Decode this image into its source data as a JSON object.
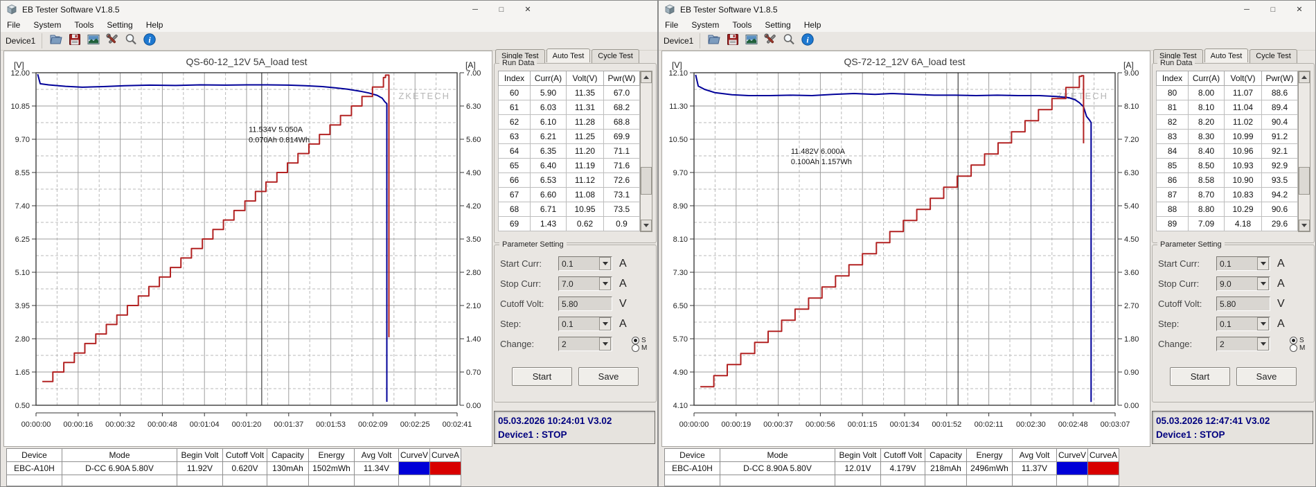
{
  "app": {
    "title": "EB Tester Software V1.8.5",
    "menu_items": [
      "File",
      "System",
      "Tools",
      "Setting",
      "Help"
    ],
    "device_tab": "Device1",
    "window_controls": {
      "minimize": "─",
      "maximize": "□",
      "close": "✕"
    },
    "toolbar_icons": [
      "open-file",
      "save",
      "waveform-image",
      "tools",
      "zoom",
      "info"
    ]
  },
  "windows": [
    {
      "tabs": [
        "Single Test",
        "Auto Test",
        "Cycle Test"
      ],
      "active_tab_index": 1,
      "run_data_title": "Run Data",
      "run_columns": [
        "Index",
        "Curr(A)",
        "Volt(V)",
        "Pwr(W)"
      ],
      "run_rows": [
        [
          "60",
          "5.90",
          "11.35",
          "67.0"
        ],
        [
          "61",
          "6.03",
          "11.31",
          "68.2"
        ],
        [
          "62",
          "6.10",
          "11.28",
          "68.8"
        ],
        [
          "63",
          "6.21",
          "11.25",
          "69.9"
        ],
        [
          "64",
          "6.35",
          "11.20",
          "71.1"
        ],
        [
          "65",
          "6.40",
          "11.19",
          "71.6"
        ],
        [
          "66",
          "6.53",
          "11.12",
          "72.6"
        ],
        [
          "67",
          "6.60",
          "11.08",
          "73.1"
        ],
        [
          "68",
          "6.71",
          "10.95",
          "73.5"
        ],
        [
          "69",
          "1.43",
          "0.62",
          "0.9"
        ]
      ],
      "param_title": "Parameter Setting",
      "params": [
        {
          "label": "Start Curr:",
          "value": "0.1",
          "unit": "A",
          "combo": true
        },
        {
          "label": "Stop Curr:",
          "value": "7.0",
          "unit": "A",
          "combo": true
        },
        {
          "label": "Cutoff Volt:",
          "value": "5.80",
          "unit": "V",
          "combo": false
        },
        {
          "label": "Step:",
          "value": "0.1",
          "unit": "A",
          "combo": true
        },
        {
          "label": "Change:",
          "value": "2",
          "unit": "",
          "combo": true,
          "radios": [
            {
              "label": "S",
              "selected": true
            },
            {
              "label": "M",
              "selected": false
            }
          ]
        }
      ],
      "start_button": "Start",
      "save_button": "Save",
      "status_line1": "05.03.2026 10:24:01  V3.02",
      "status_line2": "Device1 : STOP",
      "summary_columns": [
        "Device",
        "Mode",
        "Begin Volt",
        "Cutoff Volt",
        "Capacity",
        "Energy",
        "Avg Volt",
        "CurveV",
        "CurveA"
      ],
      "summary_row": [
        "EBC-A10H",
        "D-CC 6.90A 5.80V",
        "11.92V",
        "0.620V",
        "130mAh",
        "1502mWh",
        "11.34V"
      ],
      "curve_v_color": "#0000d8",
      "curve_a_color": "#d80000"
    },
    {
      "tabs": [
        "Single Test",
        "Auto Test",
        "Cycle Test"
      ],
      "active_tab_index": 1,
      "run_data_title": "Run Data",
      "run_columns": [
        "Index",
        "Curr(A)",
        "Volt(V)",
        "Pwr(W)"
      ],
      "run_rows": [
        [
          "80",
          "8.00",
          "11.07",
          "88.6"
        ],
        [
          "81",
          "8.10",
          "11.04",
          "89.4"
        ],
        [
          "82",
          "8.20",
          "11.02",
          "90.4"
        ],
        [
          "83",
          "8.30",
          "10.99",
          "91.2"
        ],
        [
          "84",
          "8.40",
          "10.96",
          "92.1"
        ],
        [
          "85",
          "8.50",
          "10.93",
          "92.9"
        ],
        [
          "86",
          "8.58",
          "10.90",
          "93.5"
        ],
        [
          "87",
          "8.70",
          "10.83",
          "94.2"
        ],
        [
          "88",
          "8.80",
          "10.29",
          "90.6"
        ],
        [
          "89",
          "7.09",
          "4.18",
          "29.6"
        ]
      ],
      "param_title": "Parameter Setting",
      "params": [
        {
          "label": "Start Curr:",
          "value": "0.1",
          "unit": "A",
          "combo": true
        },
        {
          "label": "Stop Curr:",
          "value": "9.0",
          "unit": "A",
          "combo": true
        },
        {
          "label": "Cutoff Volt:",
          "value": "5.80",
          "unit": "V",
          "combo": false
        },
        {
          "label": "Step:",
          "value": "0.1",
          "unit": "A",
          "combo": true
        },
        {
          "label": "Change:",
          "value": "2",
          "unit": "",
          "combo": true,
          "radios": [
            {
              "label": "S",
              "selected": true
            },
            {
              "label": "M",
              "selected": false
            }
          ]
        }
      ],
      "start_button": "Start",
      "save_button": "Save",
      "status_line1": "05.03.2026 12:47:41  V3.02",
      "status_line2": "Device1 : STOP",
      "summary_columns": [
        "Device",
        "Mode",
        "Begin Volt",
        "Cutoff Volt",
        "Capacity",
        "Energy",
        "Avg Volt",
        "CurveV",
        "CurveA"
      ],
      "summary_row": [
        "EBC-A10H",
        "D-CC 8.90A 5.80V",
        "12.01V",
        "4.179V",
        "218mAh",
        "2496mWh",
        "11.37V"
      ],
      "curve_v_color": "#0000d8",
      "curve_a_color": "#d80000"
    }
  ],
  "chart_data": [
    {
      "type": "line",
      "title": "QS-60-12_12V 5A_load test",
      "watermark": "ZKETECH",
      "grid": true,
      "y_left": {
        "unit": "[V]",
        "min": 0.5,
        "max": 12.0,
        "ticks": [
          "12.00",
          "10.85",
          "9.70",
          "8.55",
          "7.40",
          "6.25",
          "5.10",
          "3.95",
          "2.80",
          "1.65",
          "0.50"
        ]
      },
      "y_right": {
        "unit": "[A]",
        "min": 0.0,
        "max": 7.0,
        "ticks": [
          "7.00",
          "6.30",
          "5.60",
          "4.90",
          "4.20",
          "3.50",
          "2.80",
          "2.10",
          "1.40",
          "0.70",
          "0.00"
        ]
      },
      "x_ticks": [
        "00:00:00",
        "00:00:16",
        "00:00:32",
        "00:00:48",
        "00:01:04",
        "00:01:20",
        "00:01:37",
        "00:01:53",
        "00:02:09",
        "00:02:25",
        "00:02:41"
      ],
      "cursor_x_frac": 0.536,
      "annotation": {
        "lines": [
          "11.534V  5.050A",
          "0.070Ah 0.814Wh"
        ],
        "x_frac": 0.505,
        "y_value": 9.95
      },
      "series": [
        {
          "name": "voltage",
          "axis": "left",
          "color": "#000099",
          "mode": "linear",
          "points": [
            [
              0.004,
              11.95
            ],
            [
              0.01,
              11.62
            ],
            [
              0.03,
              11.58
            ],
            [
              0.07,
              11.53
            ],
            [
              0.11,
              11.5
            ],
            [
              0.16,
              11.52
            ],
            [
              0.21,
              11.55
            ],
            [
              0.27,
              11.57
            ],
            [
              0.33,
              11.56
            ],
            [
              0.39,
              11.58
            ],
            [
              0.45,
              11.57
            ],
            [
              0.5,
              11.58
            ],
            [
              0.55,
              11.58
            ],
            [
              0.6,
              11.57
            ],
            [
              0.64,
              11.55
            ],
            [
              0.68,
              11.52
            ],
            [
              0.71,
              11.48
            ],
            [
              0.74,
              11.43
            ],
            [
              0.77,
              11.36
            ],
            [
              0.79,
              11.3
            ],
            [
              0.81,
              11.22
            ],
            [
              0.822,
              11.12
            ],
            [
              0.828,
              11.0
            ],
            [
              0.833,
              10.93
            ],
            [
              0.833,
              0.62
            ]
          ]
        },
        {
          "name": "current",
          "axis": "right",
          "color": "#b22222",
          "mode": "step",
          "points": [
            [
              0.015,
              0.5
            ],
            [
              0.04,
              0.7
            ],
            [
              0.066,
              0.9
            ],
            [
              0.091,
              1.1
            ],
            [
              0.116,
              1.3
            ],
            [
              0.142,
              1.5
            ],
            [
              0.167,
              1.7
            ],
            [
              0.192,
              1.9
            ],
            [
              0.217,
              2.1
            ],
            [
              0.243,
              2.3
            ],
            [
              0.268,
              2.5
            ],
            [
              0.293,
              2.7
            ],
            [
              0.319,
              2.9
            ],
            [
              0.344,
              3.1
            ],
            [
              0.369,
              3.3
            ],
            [
              0.395,
              3.5
            ],
            [
              0.42,
              3.7
            ],
            [
              0.445,
              3.9
            ],
            [
              0.47,
              4.1
            ],
            [
              0.496,
              4.3
            ],
            [
              0.521,
              4.5
            ],
            [
              0.546,
              4.7
            ],
            [
              0.572,
              4.9
            ],
            [
              0.597,
              5.1
            ],
            [
              0.622,
              5.3
            ],
            [
              0.648,
              5.5
            ],
            [
              0.673,
              5.7
            ],
            [
              0.698,
              5.9
            ],
            [
              0.723,
              6.1
            ],
            [
              0.749,
              6.3
            ],
            [
              0.774,
              6.5
            ],
            [
              0.799,
              6.7
            ],
            [
              0.825,
              6.9
            ],
            [
              0.83,
              6.95
            ],
            [
              0.838,
              6.95
            ],
            [
              0.838,
              1.43
            ]
          ]
        }
      ]
    },
    {
      "type": "line",
      "title": "QS-72-12_12V 6A_load test",
      "watermark": "ZKETECH",
      "grid": true,
      "y_left": {
        "unit": "[V]",
        "min": 4.1,
        "max": 12.1,
        "ticks": [
          "12.10",
          "11.30",
          "10.50",
          "9.70",
          "8.90",
          "8.10",
          "7.30",
          "6.50",
          "5.70",
          "4.90",
          "4.10"
        ]
      },
      "y_right": {
        "unit": "[A]",
        "min": 0.0,
        "max": 9.0,
        "ticks": [
          "9.00",
          "8.10",
          "7.20",
          "6.30",
          "5.40",
          "4.50",
          "3.60",
          "2.70",
          "1.80",
          "0.90",
          "0.00"
        ]
      },
      "x_ticks": [
        "00:00:00",
        "00:00:19",
        "00:00:37",
        "00:00:56",
        "00:01:15",
        "00:01:34",
        "00:01:52",
        "00:02:11",
        "00:02:30",
        "00:02:48",
        "00:03:07"
      ],
      "cursor_x_frac": 0.627,
      "annotation": {
        "lines": [
          "11.482V  6.000A",
          "0.100Ah 1.157Wh"
        ],
        "x_frac": 0.23,
        "y_value": 10.15
      },
      "series": [
        {
          "name": "voltage",
          "axis": "left",
          "color": "#000099",
          "mode": "linear",
          "points": [
            [
              0.004,
              12.05
            ],
            [
              0.01,
              11.78
            ],
            [
              0.025,
              11.7
            ],
            [
              0.05,
              11.62
            ],
            [
              0.09,
              11.57
            ],
            [
              0.13,
              11.55
            ],
            [
              0.18,
              11.55
            ],
            [
              0.23,
              11.56
            ],
            [
              0.28,
              11.55
            ],
            [
              0.33,
              11.58
            ],
            [
              0.38,
              11.6
            ],
            [
              0.43,
              11.58
            ],
            [
              0.47,
              11.6
            ],
            [
              0.52,
              11.58
            ],
            [
              0.57,
              11.56
            ],
            [
              0.62,
              11.56
            ],
            [
              0.67,
              11.55
            ],
            [
              0.72,
              11.56
            ],
            [
              0.77,
              11.55
            ],
            [
              0.82,
              11.55
            ],
            [
              0.86,
              11.53
            ],
            [
              0.89,
              11.5
            ],
            [
              0.905,
              11.45
            ],
            [
              0.915,
              11.38
            ],
            [
              0.925,
              11.28
            ],
            [
              0.932,
              11.05
            ],
            [
              0.94,
              10.95
            ],
            [
              0.943,
              10.9
            ],
            [
              0.943,
              4.18
            ]
          ]
        },
        {
          "name": "current",
          "axis": "right",
          "color": "#b22222",
          "mode": "step",
          "points": [
            [
              0.015,
              0.5
            ],
            [
              0.047,
              0.8
            ],
            [
              0.079,
              1.1
            ],
            [
              0.111,
              1.4
            ],
            [
              0.144,
              1.7
            ],
            [
              0.176,
              2.0
            ],
            [
              0.208,
              2.3
            ],
            [
              0.24,
              2.6
            ],
            [
              0.272,
              2.9
            ],
            [
              0.304,
              3.2
            ],
            [
              0.336,
              3.5
            ],
            [
              0.368,
              3.8
            ],
            [
              0.4,
              4.1
            ],
            [
              0.433,
              4.4
            ],
            [
              0.465,
              4.7
            ],
            [
              0.497,
              5.0
            ],
            [
              0.529,
              5.3
            ],
            [
              0.561,
              5.6
            ],
            [
              0.593,
              5.9
            ],
            [
              0.625,
              6.2
            ],
            [
              0.658,
              6.5
            ],
            [
              0.69,
              6.8
            ],
            [
              0.722,
              7.1
            ],
            [
              0.754,
              7.4
            ],
            [
              0.786,
              7.7
            ],
            [
              0.818,
              8.0
            ],
            [
              0.85,
              8.3
            ],
            [
              0.883,
              8.6
            ],
            [
              0.915,
              8.9
            ],
            [
              0.92,
              8.92
            ],
            [
              0.925,
              8.92
            ],
            [
              0.925,
              7.09
            ]
          ]
        }
      ]
    }
  ]
}
